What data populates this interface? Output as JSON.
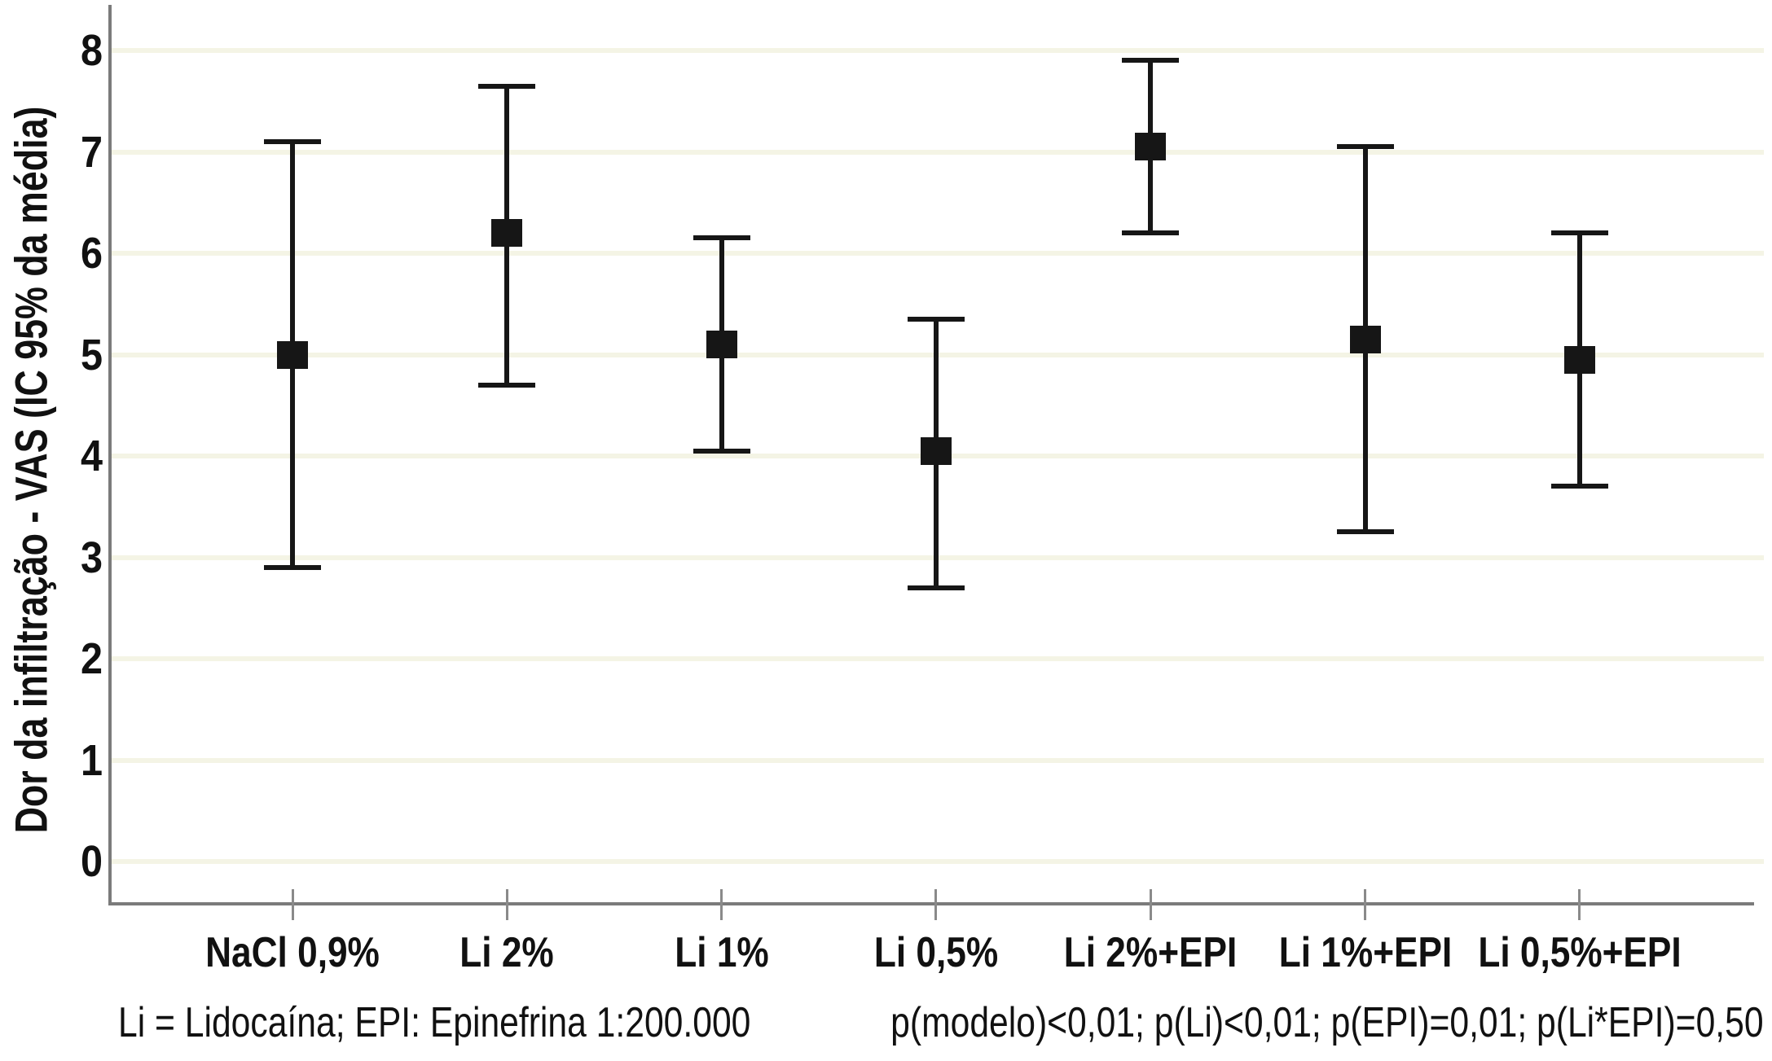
{
  "chart_data": {
    "type": "errorbar",
    "title": "",
    "ylabel": "Dor da infiltração - VAS (IC 95% da média)",
    "xlabel": "",
    "ylim": [
      0,
      8
    ],
    "yticks": [
      0,
      1,
      2,
      3,
      4,
      5,
      6,
      7,
      8
    ],
    "grid": "horizontal",
    "legend": "none",
    "marker": "filled-square",
    "categories": [
      "NaCl 0,9%",
      "Li 2%",
      "Li 1%",
      "Li 0,5%",
      "Li 2%+EPI",
      "Li 1%+EPI",
      "Li 0,5%+EPI"
    ],
    "series": [
      {
        "category": "NaCl 0,9%",
        "mean": 5.0,
        "ci_low": 2.9,
        "ci_high": 7.1
      },
      {
        "category": "Li 2%",
        "mean": 6.2,
        "ci_low": 4.7,
        "ci_high": 7.65
      },
      {
        "category": "Li 1%",
        "mean": 5.1,
        "ci_low": 4.05,
        "ci_high": 6.15
      },
      {
        "category": "Li 0,5%",
        "mean": 4.05,
        "ci_low": 2.7,
        "ci_high": 5.35
      },
      {
        "category": "Li 2%+EPI",
        "mean": 7.05,
        "ci_low": 6.2,
        "ci_high": 7.9
      },
      {
        "category": "Li 1%+EPI",
        "mean": 5.15,
        "ci_low": 3.25,
        "ci_high": 7.05
      },
      {
        "category": "Li 0,5%+EPI",
        "mean": 4.95,
        "ci_low": 3.7,
        "ci_high": 6.2
      }
    ],
    "footnotes": {
      "left": "Li = Lidocaína; EPI: Epinefrina 1:200.000",
      "right": "p(modelo)<0,01; p(Li)<0,01; p(EPI)=0,01; p(Li*EPI)=0,50"
    },
    "colors": {
      "marker": "#161616",
      "error_bar": "#161616",
      "axis": "#7b7b7b",
      "tick": "#8a8a8a",
      "gridline": "#f4f4e5",
      "background": "#ffffff",
      "text": "#111111"
    }
  }
}
